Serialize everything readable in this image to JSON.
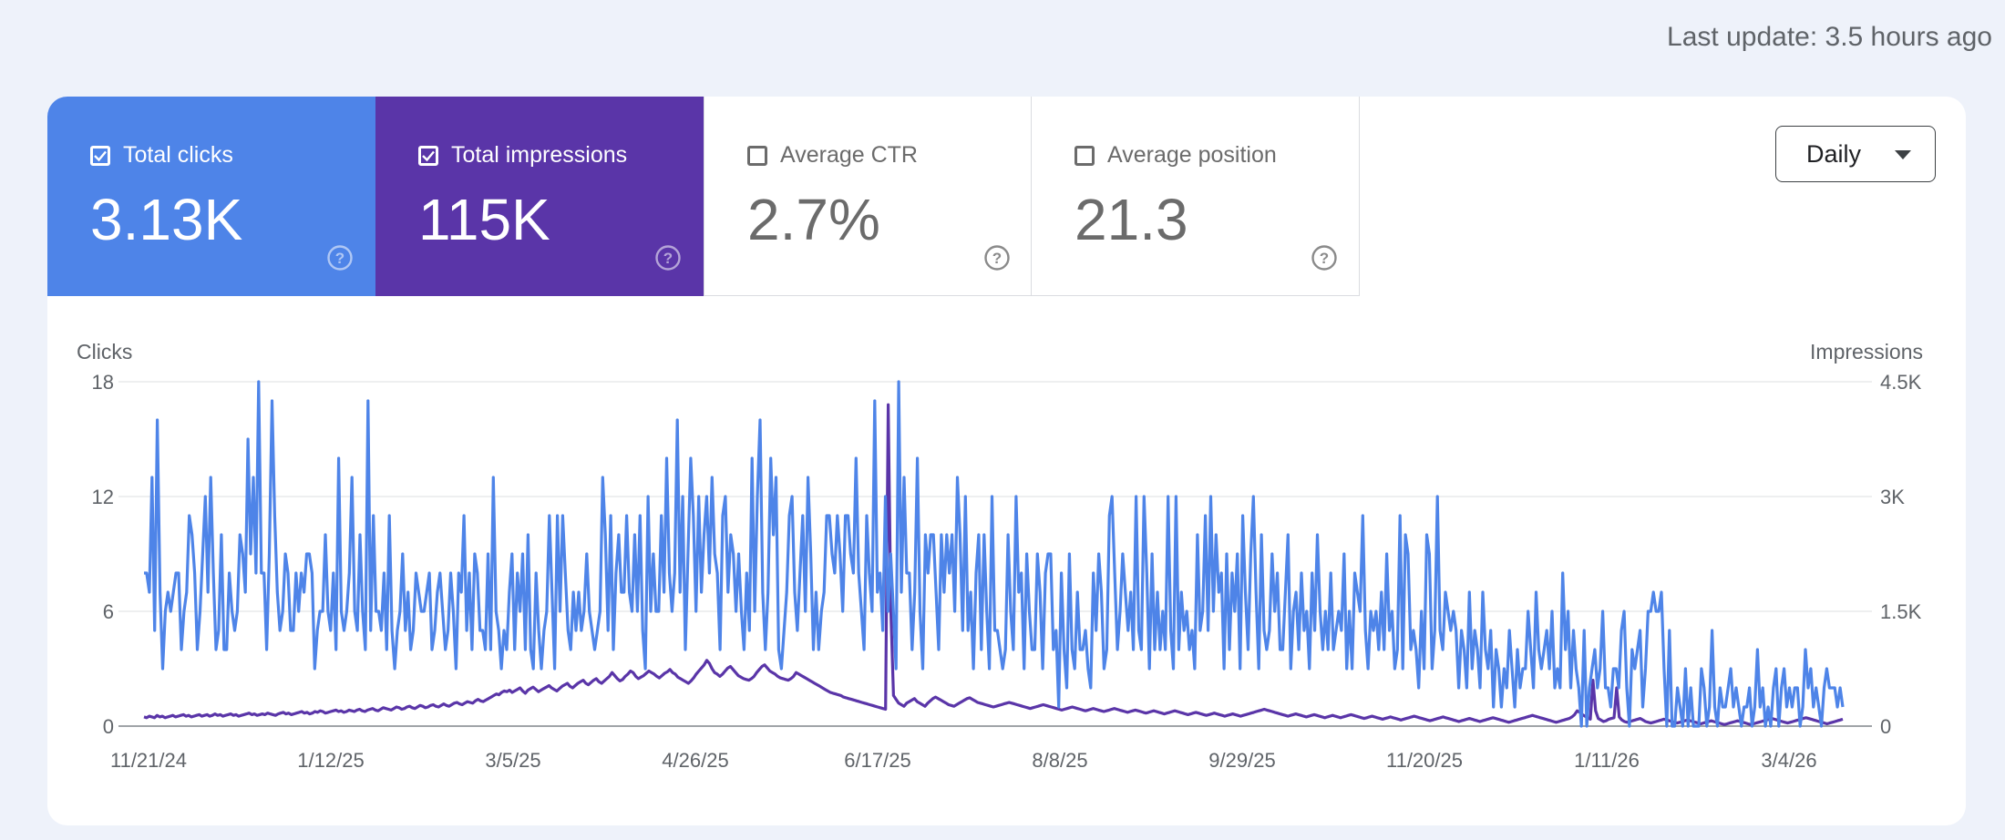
{
  "header": {
    "last_update": "Last update: 3.5 hours ago"
  },
  "metrics": [
    {
      "key": "clicks",
      "label": "Total clicks",
      "value": "3.13K",
      "checked": true,
      "color": "#4e84e8"
    },
    {
      "key": "impressions",
      "label": "Total impressions",
      "value": "115K",
      "checked": true,
      "color": "#5a35a8"
    },
    {
      "key": "ctr",
      "label": "Average CTR",
      "value": "2.7%",
      "checked": false
    },
    {
      "key": "position",
      "label": "Average position",
      "value": "21.3",
      "checked": false
    }
  ],
  "period_select": {
    "label": "Daily"
  },
  "icons": {
    "help": "help-circle-icon",
    "checkbox": "checkbox-icon",
    "dropdown": "caret-down-icon"
  },
  "chart_data": {
    "type": "line",
    "title": "",
    "x_tick_labels": [
      "11/21/24",
      "1/12/25",
      "3/5/25",
      "4/26/25",
      "6/17/25",
      "8/8/25",
      "9/29/25",
      "11/20/25",
      "1/11/26",
      "3/4/26"
    ],
    "y_left": {
      "label": "Clicks",
      "ticks": [
        0,
        6,
        12,
        18
      ],
      "tick_labels": [
        "0",
        "6",
        "12",
        "18"
      ],
      "ylim": [
        0,
        18
      ]
    },
    "y_right": {
      "label": "Impressions",
      "ticks": [
        0,
        1500,
        3000,
        4500
      ],
      "tick_labels": [
        "0",
        "1.5K",
        "3K",
        "4.5K"
      ],
      "ylim": [
        0,
        4500
      ]
    },
    "grid": true,
    "series": [
      {
        "name": "Clicks",
        "axis": "left",
        "color": "#4e84e8",
        "values": [
          8,
          8,
          7,
          13,
          5,
          16,
          7,
          3,
          6,
          7,
          6,
          7,
          8,
          8,
          4,
          6,
          7,
          11,
          10,
          8,
          4,
          6,
          9,
          12,
          7,
          13,
          8,
          4,
          5,
          10,
          4,
          4,
          8,
          6,
          5,
          6,
          10,
          9,
          7,
          15,
          9,
          13,
          8,
          18,
          8,
          8,
          4,
          9,
          17,
          11,
          7,
          5,
          6,
          9,
          8,
          5,
          5,
          8,
          6,
          8,
          7,
          9,
          9,
          8,
          3,
          5,
          6,
          6,
          10,
          6,
          5,
          8,
          4,
          14,
          6,
          5,
          6,
          8,
          13,
          6,
          5,
          10,
          6,
          4,
          17,
          5,
          11,
          6,
          6,
          5,
          8,
          4,
          11,
          5,
          3,
          5,
          6,
          9,
          5,
          7,
          4,
          5,
          8,
          7,
          6,
          6,
          7,
          8,
          4,
          5,
          7,
          8,
          6,
          4,
          5,
          8,
          6,
          3,
          8,
          7,
          11,
          5,
          8,
          4,
          9,
          8,
          5,
          5,
          4,
          9,
          4,
          13,
          6,
          5,
          3,
          5,
          4,
          7,
          9,
          4,
          8,
          6,
          9,
          4,
          10,
          4,
          3,
          8,
          5,
          3,
          5,
          6,
          11,
          7,
          3,
          11,
          6,
          11,
          8,
          5,
          4,
          7,
          5,
          7,
          5,
          6,
          9,
          6,
          5,
          4,
          5,
          6,
          13,
          10,
          5,
          11,
          4,
          8,
          10,
          7,
          7,
          11,
          7,
          6,
          10,
          6,
          11,
          5,
          3,
          12,
          6,
          9,
          6,
          6,
          11,
          7,
          14,
          8,
          6,
          8,
          16,
          7,
          12,
          4,
          9,
          14,
          11,
          6,
          12,
          7,
          10,
          12,
          8,
          13,
          9,
          8,
          4,
          11,
          12,
          7,
          10,
          9,
          6,
          9,
          6,
          4,
          8,
          5,
          14,
          6,
          12,
          16,
          7,
          4,
          7,
          14,
          10,
          13,
          4,
          3,
          5,
          7,
          11,
          12,
          7,
          5,
          8,
          11,
          6,
          13,
          9,
          4,
          7,
          4,
          6,
          7,
          11,
          11,
          9,
          8,
          11,
          9,
          6,
          11,
          11,
          9,
          8,
          14,
          8,
          6,
          4,
          11,
          8,
          6,
          17,
          7,
          8,
          5,
          12,
          6,
          9,
          6,
          3,
          18,
          7,
          13,
          8,
          8,
          4,
          7,
          14,
          6,
          3,
          10,
          8,
          10,
          10,
          7,
          4,
          10,
          7,
          10,
          8,
          10,
          6,
          13,
          10,
          5,
          12,
          5,
          7,
          3,
          8,
          10,
          4,
          10,
          6,
          3,
          12,
          5,
          5,
          4,
          3,
          4,
          10,
          6,
          4,
          12,
          7,
          8,
          3,
          9,
          6,
          4,
          4,
          9,
          7,
          3,
          8,
          9,
          9,
          4,
          5,
          1,
          8,
          4,
          2,
          9,
          4,
          3,
          7,
          4,
          4,
          5,
          3,
          2,
          8,
          5,
          9,
          7,
          3,
          4,
          11,
          12,
          8,
          4,
          6,
          9,
          7,
          5,
          7,
          4,
          12,
          5,
          4,
          12,
          8,
          3,
          9,
          4,
          7,
          4,
          6,
          4,
          12,
          5,
          3,
          12,
          4,
          7,
          5,
          6,
          4,
          5,
          3,
          10,
          5,
          6,
          11,
          5,
          12,
          6,
          10,
          7,
          8,
          3,
          9,
          4,
          8,
          6,
          9,
          3,
          11,
          7,
          4,
          9,
          12,
          7,
          3,
          10,
          5,
          4,
          5,
          9,
          6,
          8,
          4,
          4,
          7,
          10,
          3,
          6,
          7,
          4,
          8,
          5,
          6,
          3,
          8,
          5,
          10,
          6,
          4,
          6,
          4,
          8,
          4,
          5,
          6,
          5,
          9,
          3,
          6,
          3,
          8,
          7,
          6,
          11,
          5,
          3,
          6,
          5,
          6,
          4,
          7,
          4,
          9,
          5,
          6,
          3,
          4,
          11,
          3,
          10,
          9,
          4,
          5,
          4,
          2,
          6,
          3,
          10,
          9,
          3,
          5,
          12,
          5,
          4,
          7,
          6,
          5,
          6,
          5,
          2,
          5,
          4,
          2,
          7,
          3,
          5,
          4,
          2,
          7,
          4,
          3,
          5,
          1,
          4,
          3,
          1,
          3,
          2,
          5,
          3,
          1,
          4,
          2,
          3,
          3,
          6,
          4,
          2,
          7,
          4,
          3,
          4,
          5,
          3,
          6,
          2,
          3,
          2,
          8,
          4,
          6,
          2,
          5,
          3,
          2,
          0,
          5,
          0,
          2,
          3,
          4,
          2,
          3,
          6,
          2,
          2,
          1,
          3,
          3,
          2,
          5,
          6,
          2,
          0,
          4,
          3,
          4,
          5,
          1,
          3,
          6,
          6,
          7,
          6,
          6,
          7,
          3,
          0,
          5,
          0,
          0,
          2,
          1,
          0,
          3,
          0,
          2,
          0,
          0,
          0,
          3,
          2,
          0,
          1,
          5,
          1,
          0,
          2,
          1,
          1,
          2,
          3,
          1,
          2,
          1,
          0,
          1,
          1,
          2,
          0,
          1,
          4,
          1,
          2,
          0,
          1,
          0,
          2,
          3,
          0,
          2,
          3,
          1,
          2,
          1,
          2,
          2,
          0,
          1,
          4,
          2,
          3,
          1,
          2,
          1,
          0,
          2,
          3,
          2,
          2,
          2,
          1,
          2,
          1
        ]
      },
      {
        "name": "Impressions",
        "axis": "right",
        "color": "#5a35a8",
        "values": [
          120,
          110,
          130,
          120,
          110,
          140,
          120,
          130,
          110,
          120,
          130,
          140,
          120,
          130,
          140,
          150,
          130,
          140,
          120,
          130,
          140,
          150,
          130,
          140,
          150,
          130,
          140,
          160,
          140,
          150,
          130,
          140,
          150,
          160,
          140,
          150,
          130,
          140,
          150,
          160,
          170,
          150,
          160,
          140,
          150,
          160,
          150,
          170,
          160,
          150,
          140,
          160,
          170,
          180,
          160,
          170,
          150,
          160,
          170,
          180,
          190,
          170,
          180,
          160,
          170,
          190,
          180,
          200,
          190,
          170,
          180,
          190,
          200,
          210,
          190,
          200,
          180,
          190,
          210,
          200,
          190,
          210,
          220,
          200,
          190,
          210,
          220,
          230,
          210,
          200,
          220,
          240,
          230,
          220,
          210,
          230,
          250,
          240,
          220,
          230,
          250,
          260,
          240,
          230,
          250,
          270,
          260,
          240,
          250,
          270,
          280,
          260,
          250,
          270,
          290,
          270,
          260,
          280,
          300,
          310,
          290,
          280,
          300,
          320,
          310,
          300,
          330,
          350,
          330,
          320,
          340,
          360,
          380,
          400,
          420,
          410,
          440,
          460,
          450,
          470,
          440,
          460,
          480,
          500,
          460,
          430,
          470,
          490,
          510,
          480,
          450,
          470,
          490,
          510,
          530,
          500,
          480,
          460,
          490,
          520,
          540,
          560,
          520,
          500,
          530,
          560,
          580,
          600,
          560,
          540,
          570,
          600,
          620,
          580,
          560,
          590,
          620,
          650,
          700,
          660,
          620,
          590,
          610,
          650,
          680,
          720,
          700,
          650,
          620,
          640,
          660,
          690,
          720,
          700,
          680,
          650,
          630,
          660,
          690,
          710,
          740,
          700,
          680,
          640,
          620,
          600,
          580,
          560,
          590,
          630,
          680,
          720,
          760,
          800,
          860,
          820,
          750,
          700,
          680,
          650,
          680,
          720,
          760,
          780,
          740,
          700,
          660,
          640,
          620,
          610,
          600,
          620,
          650,
          700,
          740,
          780,
          800,
          760,
          720,
          700,
          680,
          650,
          630,
          620,
          610,
          600,
          620,
          650,
          700,
          680,
          660,
          640,
          620,
          600,
          580,
          560,
          540,
          520,
          500,
          480,
          460,
          440,
          430,
          420,
          410,
          400,
          380,
          370,
          360,
          350,
          340,
          330,
          320,
          310,
          300,
          290,
          280,
          270,
          260,
          250,
          240,
          230,
          220,
          4200,
          1500,
          400,
          350,
          300,
          280,
          260,
          300,
          320,
          340,
          360,
          320,
          300,
          280,
          260,
          300,
          330,
          360,
          380,
          360,
          340,
          320,
          300,
          280,
          270,
          260,
          280,
          300,
          320,
          340,
          360,
          370,
          350,
          330,
          310,
          300,
          290,
          280,
          270,
          260,
          250,
          260,
          270,
          280,
          290,
          300,
          310,
          300,
          290,
          280,
          270,
          260,
          250,
          240,
          230,
          240,
          250,
          260,
          270,
          280,
          270,
          260,
          250,
          240,
          230,
          220,
          210,
          220,
          230,
          240,
          250,
          240,
          230,
          220,
          210,
          200,
          210,
          220,
          230,
          220,
          210,
          200,
          190,
          200,
          210,
          220,
          230,
          220,
          210,
          200,
          190,
          180,
          190,
          200,
          210,
          200,
          190,
          180,
          170,
          180,
          190,
          200,
          190,
          180,
          170,
          160,
          170,
          180,
          190,
          200,
          190,
          180,
          170,
          160,
          150,
          160,
          170,
          180,
          170,
          160,
          150,
          140,
          150,
          160,
          170,
          160,
          150,
          140,
          130,
          140,
          150,
          160,
          150,
          140,
          130,
          140,
          150,
          160,
          170,
          180,
          190,
          200,
          210,
          220,
          210,
          200,
          190,
          180,
          170,
          160,
          150,
          140,
          130,
          140,
          150,
          160,
          150,
          140,
          130,
          120,
          130,
          140,
          150,
          140,
          130,
          120,
          110,
          120,
          130,
          140,
          130,
          120,
          110,
          120,
          130,
          140,
          150,
          140,
          130,
          120,
          110,
          100,
          110,
          120,
          130,
          120,
          110,
          100,
          90,
          100,
          110,
          120,
          110,
          100,
          90,
          80,
          90,
          100,
          110,
          120,
          130,
          120,
          110,
          100,
          90,
          80,
          70,
          80,
          90,
          100,
          110,
          120,
          110,
          100,
          90,
          80,
          70,
          60,
          70,
          80,
          90,
          100,
          90,
          80,
          70,
          60,
          70,
          80,
          90,
          100,
          110,
          100,
          90,
          80,
          70,
          60,
          50,
          60,
          70,
          80,
          90,
          100,
          110,
          120,
          130,
          140,
          130,
          120,
          110,
          100,
          90,
          80,
          70,
          60,
          50,
          60,
          70,
          80,
          90,
          100,
          120,
          150,
          200,
          180,
          150,
          130,
          110,
          90,
          600,
          200,
          100,
          80,
          60,
          70,
          90,
          100,
          110,
          500,
          120,
          80,
          60,
          50,
          60,
          70,
          80,
          90,
          100,
          80,
          60,
          50,
          40,
          50,
          60,
          70,
          80,
          90,
          80,
          70,
          60,
          50,
          40,
          50,
          60,
          70,
          80,
          70,
          60,
          50,
          40,
          30,
          40,
          50,
          60,
          70,
          60,
          50,
          40,
          30,
          20,
          30,
          40,
          50,
          60,
          70,
          60,
          50,
          40,
          30,
          20,
          30,
          40,
          50,
          60,
          70,
          80,
          90,
          100,
          90,
          80,
          70,
          60,
          50,
          40,
          50,
          60,
          70,
          80,
          90,
          100,
          110,
          100,
          90,
          80,
          70,
          60,
          50,
          40,
          30,
          40,
          50,
          60,
          70,
          80,
          90
        ]
      }
    ]
  }
}
